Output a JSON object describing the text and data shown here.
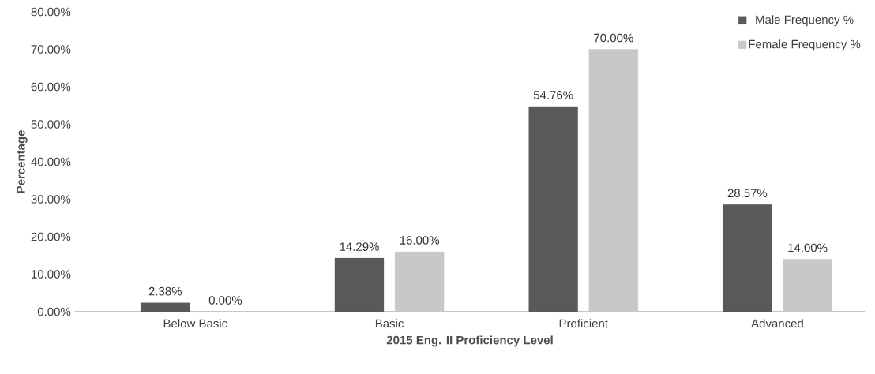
{
  "chart_data": {
    "type": "bar",
    "xlabel": "2015 Eng. II Proficiency Level",
    "ylabel": "Percentage",
    "categories": [
      "Below Basic",
      "Basic",
      "Proficient",
      "Advanced"
    ],
    "series": [
      {
        "name": "Male Frequency %",
        "color": "#595959",
        "values": [
          2.38,
          14.29,
          54.76,
          28.57
        ],
        "value_labels": [
          "2.38%",
          "14.29%",
          "54.76%",
          "28.57%"
        ]
      },
      {
        "name": "Female Frequency %",
        "color": "#c8c8c8",
        "values": [
          0,
          16,
          70,
          14
        ],
        "value_labels": [
          "0.00%",
          "16.00%",
          "70.00%",
          "14.00%"
        ]
      }
    ],
    "ylim": [
      0,
      80
    ],
    "yticks": [
      {
        "value": 0,
        "label": "0.00%"
      },
      {
        "value": 10,
        "label": "10.00%"
      },
      {
        "value": 20,
        "label": "20.00%"
      },
      {
        "value": 30,
        "label": "30.00%"
      },
      {
        "value": 40,
        "label": "40.00%"
      },
      {
        "value": 50,
        "label": "50.00%"
      },
      {
        "value": 60,
        "label": "60.00%"
      },
      {
        "value": 70,
        "label": "70.00%"
      },
      {
        "value": 80,
        "label": "80.00%"
      }
    ],
    "legend": "top right"
  }
}
